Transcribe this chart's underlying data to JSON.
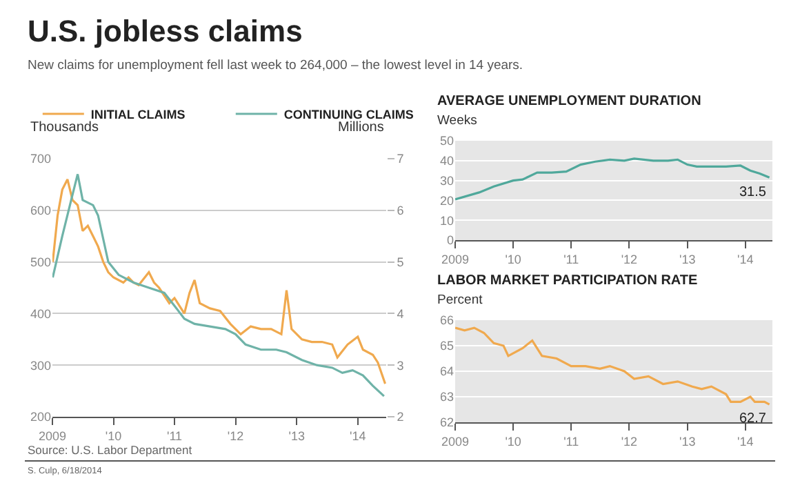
{
  "chart_data": [
    {
      "type": "line",
      "title": "U.S. jobless claims",
      "subtitle": "New claims for unemployment fell last week to 264,000 – the lowest level in 14 years.",
      "annotations": [
        "Source: U.S. Labor Department",
        "S. Culp, 6/18/2014"
      ],
      "ylabel": "Thousands",
      "y2label": "Millions",
      "legend": "top",
      "grid": "y",
      "xlim": [
        "2009-01-01",
        "2014-06-20"
      ],
      "xticks": [
        {
          "value": "2009-01-01",
          "label": "2009"
        },
        {
          "value": "2010-01-01",
          "label": "'10"
        },
        {
          "value": "2011-01-01",
          "label": "'11"
        },
        {
          "value": "2012-01-01",
          "label": "'12"
        },
        {
          "value": "2013-01-01",
          "label": "'13"
        },
        {
          "value": "2014-01-01",
          "label": "'14"
        }
      ],
      "ylim": [
        200,
        700
      ],
      "yticks": [
        200,
        300,
        400,
        500,
        600,
        700
      ],
      "y2lim": [
        2,
        7
      ],
      "y2ticks": [
        2,
        3,
        4,
        5,
        6,
        7
      ],
      "series": [
        {
          "name": "INITIAL CLAIMS",
          "color": "#f0a94e",
          "x": [
            "2009-01-03",
            "2009-02",
            "2009-03",
            "2009-04",
            "2009-05",
            "2009-06",
            "2009-07",
            "2009-08",
            "2009-09",
            "2009-10",
            "2009-11",
            "2009-12",
            "2010-01",
            "2010-03",
            "2010-04",
            "2010-05",
            "2010-06",
            "2010-08",
            "2010-09",
            "2010-10",
            "2010-12",
            "2011-01",
            "2011-03",
            "2011-04",
            "2011-05",
            "2011-06",
            "2011-08",
            "2011-10",
            "2011-12",
            "2012-02",
            "2012-04",
            "2012-06",
            "2012-08",
            "2012-10",
            "2012-11",
            "2012-12",
            "2013-02",
            "2013-04",
            "2013-06",
            "2013-08",
            "2013-09",
            "2013-11",
            "2014-01",
            "2014-02",
            "2014-04",
            "2014-05",
            "2014-06-14"
          ],
          "values": [
            500,
            590,
            640,
            660,
            620,
            610,
            560,
            570,
            550,
            530,
            500,
            480,
            470,
            460,
            470,
            460,
            455,
            480,
            460,
            450,
            420,
            430,
            400,
            440,
            465,
            420,
            410,
            405,
            380,
            360,
            375,
            370,
            370,
            360,
            445,
            370,
            350,
            345,
            345,
            340,
            315,
            340,
            355,
            330,
            320,
            305,
            264
          ]
        },
        {
          "name": "CONTINUING CLAIMS",
          "color": "#6fb3a8",
          "axis": "y2",
          "x": [
            "2009-01-03",
            "2009-03",
            "2009-05",
            "2009-06",
            "2009-07",
            "2009-09",
            "2009-10",
            "2009-12",
            "2010-02",
            "2010-05",
            "2010-08",
            "2010-11",
            "2011-01",
            "2011-03",
            "2011-05",
            "2011-08",
            "2011-11",
            "2012-01",
            "2012-03",
            "2012-06",
            "2012-09",
            "2012-11",
            "2013-02",
            "2013-05",
            "2013-08",
            "2013-10",
            "2013-12",
            "2014-02",
            "2014-04",
            "2014-06-07"
          ],
          "values": [
            4.7,
            5.5,
            6.3,
            6.7,
            6.2,
            6.1,
            5.9,
            5.0,
            4.75,
            4.6,
            4.5,
            4.4,
            4.15,
            3.9,
            3.8,
            3.75,
            3.7,
            3.6,
            3.4,
            3.3,
            3.3,
            3.25,
            3.1,
            3.0,
            2.95,
            2.85,
            2.9,
            2.8,
            2.6,
            2.4
          ]
        }
      ]
    },
    {
      "type": "line",
      "title": "AVERAGE UNEMPLOYMENT DURATION",
      "ylabel": "Weeks",
      "grid": "y",
      "annotations": [
        {
          "text": "31.5",
          "x": "2014-06-01",
          "y": 31.5
        }
      ],
      "xlim": [
        "2009-01-01",
        "2014-06-20"
      ],
      "xticks": [
        {
          "value": "2009-01-01",
          "label": "2009"
        },
        {
          "value": "2010-01-01",
          "label": "'10"
        },
        {
          "value": "2011-01-01",
          "label": "'11"
        },
        {
          "value": "2012-01-01",
          "label": "'12"
        },
        {
          "value": "2013-01-01",
          "label": "'13"
        },
        {
          "value": "2014-01-01",
          "label": "'14"
        }
      ],
      "ylim": [
        0,
        50
      ],
      "yticks": [
        0,
        10,
        20,
        30,
        40,
        50
      ],
      "series": [
        {
          "color": "#4fa89b",
          "x": [
            "2009-01",
            "2009-06",
            "2009-09",
            "2010-01",
            "2010-03",
            "2010-06",
            "2010-09",
            "2010-12",
            "2011-03",
            "2011-06",
            "2011-09",
            "2011-12",
            "2012-02",
            "2012-06",
            "2012-09",
            "2012-11",
            "2013-01",
            "2013-03",
            "2013-06",
            "2013-09",
            "2013-12",
            "2014-02",
            "2014-04",
            "2014-06"
          ],
          "values": [
            20.5,
            24,
            27,
            30,
            30.5,
            34,
            34,
            34.5,
            38,
            39.5,
            40.5,
            40,
            41,
            40,
            40,
            40.5,
            38,
            37,
            37,
            37,
            37.5,
            35,
            33.5,
            31.5
          ]
        }
      ]
    },
    {
      "type": "line",
      "title": "LABOR MARKET PARTICIPATION RATE",
      "ylabel": "Percent",
      "grid": "y",
      "annotations": [
        {
          "text": "62.7",
          "x": "2014-06-01",
          "y": 62.7
        }
      ],
      "xlim": [
        "2009-01-01",
        "2014-06-20"
      ],
      "xticks": [
        {
          "value": "2009-01-01",
          "label": "2009"
        },
        {
          "value": "2010-01-01",
          "label": "'10"
        },
        {
          "value": "2011-01-01",
          "label": "'11"
        },
        {
          "value": "2012-01-01",
          "label": "'12"
        },
        {
          "value": "2013-01-01",
          "label": "'13"
        },
        {
          "value": "2014-01-01",
          "label": "'14"
        }
      ],
      "ylim": [
        62,
        66
      ],
      "yticks": [
        62,
        63,
        64,
        65,
        66
      ],
      "series": [
        {
          "color": "#f0a94e",
          "x": [
            "2009-01",
            "2009-03",
            "2009-05",
            "2009-07",
            "2009-09",
            "2009-11",
            "2009-12",
            "2010-03",
            "2010-05",
            "2010-07",
            "2010-10",
            "2011-01",
            "2011-04",
            "2011-07",
            "2011-09",
            "2011-12",
            "2012-02",
            "2012-05",
            "2012-08",
            "2012-11",
            "2013-02",
            "2013-04",
            "2013-06",
            "2013-09",
            "2013-10",
            "2013-12",
            "2014-02",
            "2014-03",
            "2014-05",
            "2014-06"
          ],
          "values": [
            65.7,
            65.6,
            65.7,
            65.5,
            65.1,
            65.0,
            64.6,
            64.9,
            65.2,
            64.6,
            64.5,
            64.2,
            64.2,
            64.1,
            64.2,
            64.0,
            63.7,
            63.8,
            63.5,
            63.6,
            63.4,
            63.3,
            63.4,
            63.1,
            62.8,
            62.8,
            63.0,
            62.8,
            62.8,
            62.7
          ]
        }
      ]
    }
  ]
}
